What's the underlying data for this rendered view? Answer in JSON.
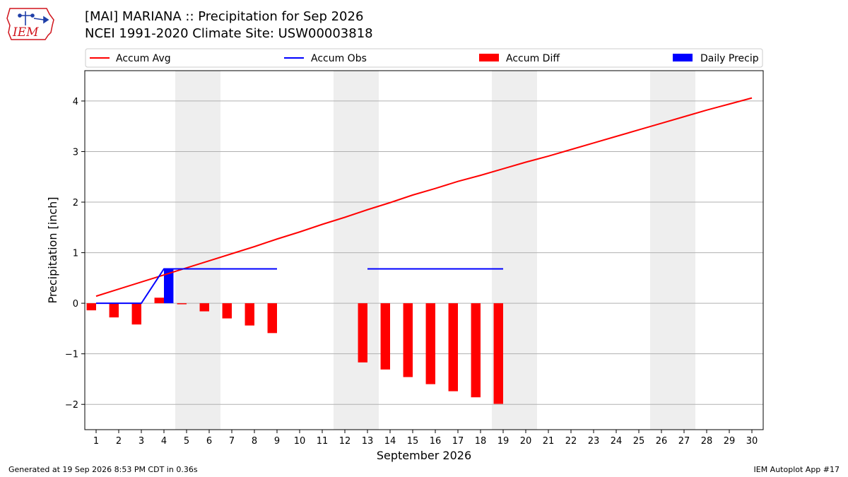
{
  "logo": {
    "text": "IEM",
    "color": "#d0141c"
  },
  "title": {
    "line1": "[MAI] MARIANA :: Precipitation for Sep 2026",
    "line2": "NCEI 1991-2020 Climate Site: USW00003818"
  },
  "footer": {
    "left": "Generated at 19 Sep 2026 8:53 PM CDT in 0.36s",
    "right": "IEM Autoplot App #17"
  },
  "colors": {
    "avg": "#ff0000",
    "obs": "#0000ff",
    "diff": "#ff0000",
    "daily": "#0000ff",
    "weekend": "#eeeeee",
    "grid": "#b0b0b0"
  },
  "chart_data": {
    "type": "bar",
    "xlabel": "September 2026",
    "ylabel": "Precipitation [inch]",
    "xlim": [
      0.5,
      30.5
    ],
    "ylim": [
      -2.5,
      4.6
    ],
    "yticks": [
      -2,
      -1,
      0,
      1,
      2,
      3,
      4
    ],
    "ytick_labels": [
      "−2",
      "−1",
      "0",
      "1",
      "2",
      "3",
      "4"
    ],
    "days": [
      1,
      2,
      3,
      4,
      5,
      6,
      7,
      8,
      9,
      10,
      11,
      12,
      13,
      14,
      15,
      16,
      17,
      18,
      19,
      20,
      21,
      22,
      23,
      24,
      25,
      26,
      27,
      28,
      29,
      30
    ],
    "grid": "horizontal",
    "legend": {
      "placement": "top",
      "entries": [
        "Accum Avg",
        "Accum Obs",
        "Accum Diff",
        "Daily Precip"
      ]
    },
    "weekend_spans": [
      [
        4.5,
        6.5
      ],
      [
        11.5,
        13.5
      ],
      [
        18.5,
        20.5
      ],
      [
        25.5,
        27.5
      ]
    ],
    "series": [
      {
        "name": "Accum Avg",
        "kind": "line",
        "x": [
          1,
          2,
          3,
          4,
          5,
          6,
          7,
          8,
          9,
          10,
          11,
          12,
          13,
          14,
          15,
          16,
          17,
          18,
          19,
          20,
          21,
          22,
          23,
          24,
          25,
          26,
          27,
          28,
          29,
          30
        ],
        "values": [
          0.14,
          0.28,
          0.42,
          0.56,
          0.7,
          0.84,
          0.98,
          1.12,
          1.27,
          1.41,
          1.56,
          1.7,
          1.85,
          1.99,
          2.14,
          2.27,
          2.41,
          2.53,
          2.66,
          2.79,
          2.91,
          3.04,
          3.17,
          3.3,
          3.43,
          3.56,
          3.69,
          3.82,
          3.94,
          4.06
        ]
      },
      {
        "name": "Accum Obs",
        "kind": "line",
        "segments": [
          {
            "x": [
              1,
              2,
              3,
              4,
              5,
              6,
              7,
              8,
              9
            ],
            "values": [
              0,
              0,
              0,
              0.68,
              0.68,
              0.68,
              0.68,
              0.68,
              0.68
            ]
          },
          {
            "x": [
              13,
              14,
              15,
              16,
              17,
              18,
              19
            ],
            "values": [
              0.68,
              0.68,
              0.68,
              0.68,
              0.68,
              0.68,
              0.68
            ]
          }
        ]
      },
      {
        "name": "Accum Diff",
        "kind": "bar",
        "x": [
          1,
          2,
          3,
          4,
          5,
          6,
          7,
          8,
          9,
          13,
          14,
          15,
          16,
          17,
          18,
          19
        ],
        "values": [
          -0.14,
          -0.28,
          -0.42,
          0.11,
          -0.02,
          -0.16,
          -0.3,
          -0.44,
          -0.59,
          -1.17,
          -1.31,
          -1.46,
          -1.6,
          -1.74,
          -1.86,
          -1.99
        ]
      },
      {
        "name": "Daily Precip",
        "kind": "bar",
        "x": [
          4
        ],
        "values": [
          0.68
        ]
      }
    ]
  }
}
